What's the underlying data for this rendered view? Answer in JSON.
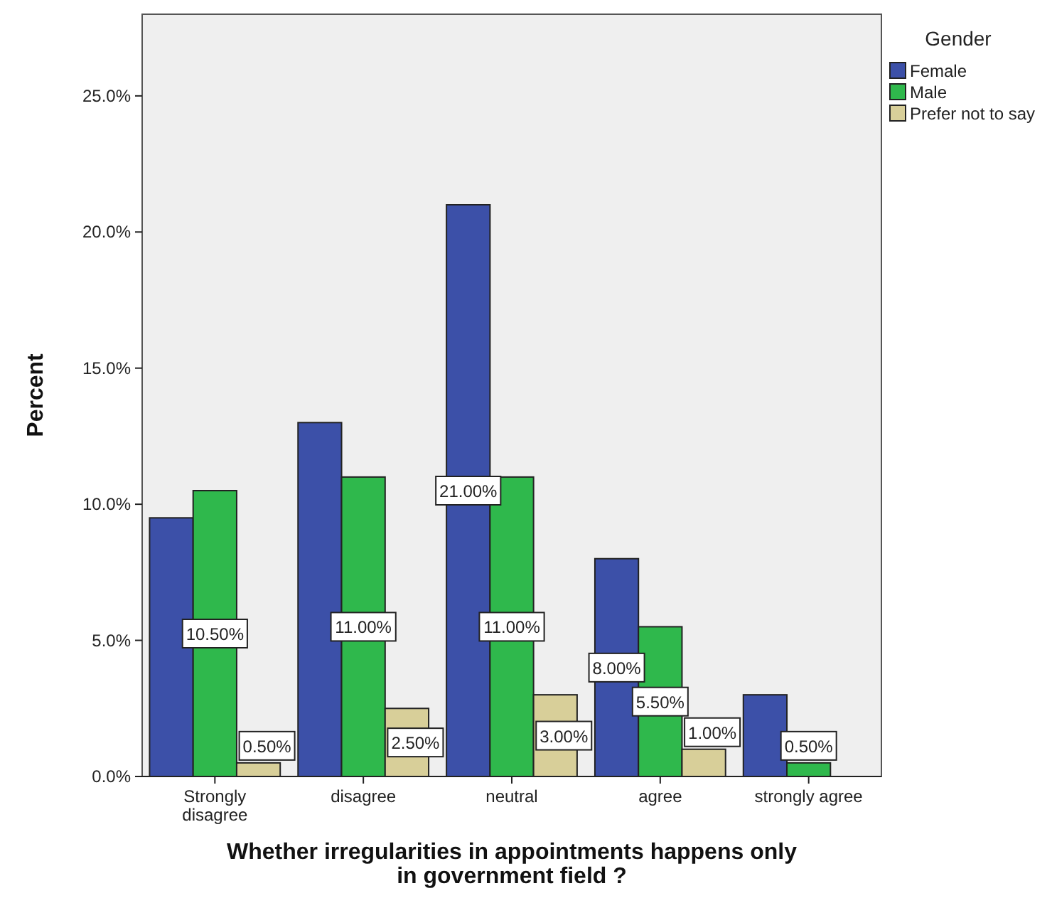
{
  "chart_data": {
    "type": "bar",
    "xlabel": "Whether irregularities in appointments happens only in government field ?",
    "ylabel": "Percent",
    "legend_title": "Gender",
    "legend": "top right",
    "categories": [
      "Strongly disagree",
      "disagree",
      "neutral",
      "agree",
      "strongly agree"
    ],
    "series": [
      {
        "name": "Female",
        "color": "#3c50a8",
        "values": [
          9.5,
          13.0,
          21.0,
          8.0,
          3.0
        ],
        "value_labels": [
          null,
          null,
          "21.00%",
          "8.00%",
          null
        ]
      },
      {
        "name": "Male",
        "color": "#2fb84c",
        "values": [
          10.5,
          11.0,
          11.0,
          5.5,
          0.5
        ],
        "value_labels": [
          "10.50%",
          "11.00%",
          "11.00%",
          "5.50%",
          "0.50%"
        ]
      },
      {
        "name": "Prefer not to say",
        "color": "#d8cf99",
        "values": [
          0.5,
          2.5,
          3.0,
          1.0,
          null
        ],
        "value_labels": [
          "0.50%",
          "2.50%",
          "3.00%",
          "1.00%",
          null
        ]
      }
    ],
    "ylim": [
      0,
      28
    ],
    "yticks": [
      {
        "value": 0,
        "label": "0.0%"
      },
      {
        "value": 5,
        "label": "5.0%"
      },
      {
        "value": 10,
        "label": "10.0%"
      },
      {
        "value": 15,
        "label": "15.0%"
      },
      {
        "value": 20,
        "label": "20.0%"
      },
      {
        "value": 25,
        "label": "25.0%"
      }
    ],
    "grid": false
  }
}
